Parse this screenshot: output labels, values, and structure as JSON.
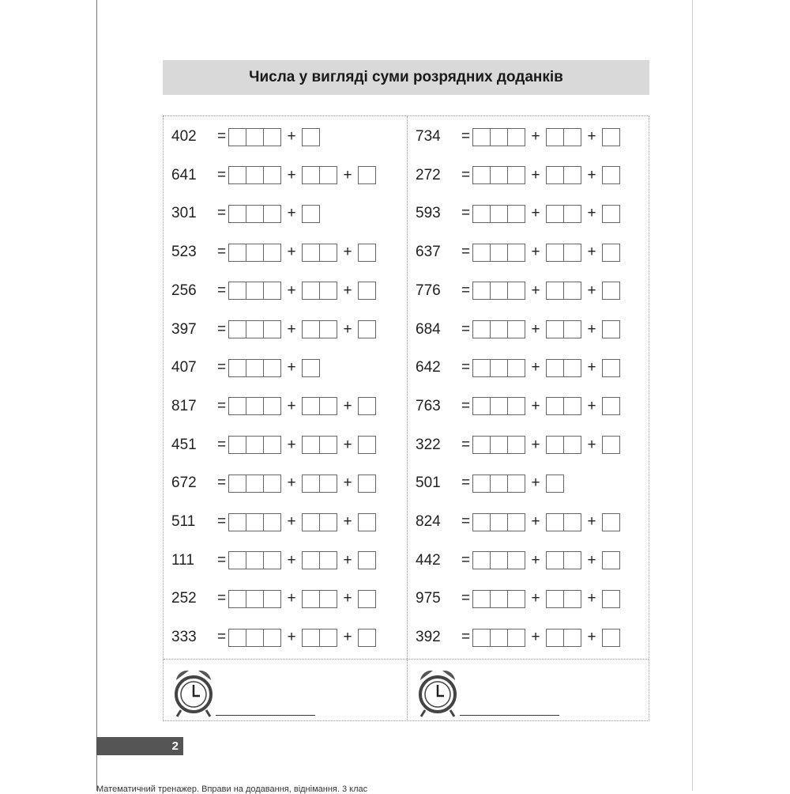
{
  "title": "Числа у вигляді суми розрядних доданків",
  "left_column": [
    {
      "number": "402",
      "terms": [
        3,
        1
      ]
    },
    {
      "number": "641",
      "terms": [
        3,
        2,
        1
      ]
    },
    {
      "number": "301",
      "terms": [
        3,
        1
      ]
    },
    {
      "number": "523",
      "terms": [
        3,
        2,
        1
      ]
    },
    {
      "number": "256",
      "terms": [
        3,
        2,
        1
      ]
    },
    {
      "number": "397",
      "terms": [
        3,
        2,
        1
      ]
    },
    {
      "number": "407",
      "terms": [
        3,
        1
      ]
    },
    {
      "number": "817",
      "terms": [
        3,
        2,
        1
      ]
    },
    {
      "number": "451",
      "terms": [
        3,
        2,
        1
      ]
    },
    {
      "number": "672",
      "terms": [
        3,
        2,
        1
      ]
    },
    {
      "number": "511",
      "terms": [
        3,
        2,
        1
      ]
    },
    {
      "number": "111",
      "terms": [
        3,
        2,
        1
      ]
    },
    {
      "number": "252",
      "terms": [
        3,
        2,
        1
      ]
    },
    {
      "number": "333",
      "terms": [
        3,
        2,
        1
      ]
    }
  ],
  "right_column": [
    {
      "number": "734",
      "terms": [
        3,
        2,
        1
      ]
    },
    {
      "number": "272",
      "terms": [
        3,
        2,
        1
      ]
    },
    {
      "number": "593",
      "terms": [
        3,
        2,
        1
      ]
    },
    {
      "number": "637",
      "terms": [
        3,
        2,
        1
      ]
    },
    {
      "number": "776",
      "terms": [
        3,
        2,
        1
      ]
    },
    {
      "number": "684",
      "terms": [
        3,
        2,
        1
      ]
    },
    {
      "number": "642",
      "terms": [
        3,
        2,
        1
      ]
    },
    {
      "number": "763",
      "terms": [
        3,
        2,
        1
      ]
    },
    {
      "number": "322",
      "terms": [
        3,
        2,
        1
      ]
    },
    {
      "number": "501",
      "terms": [
        3,
        1
      ]
    },
    {
      "number": "824",
      "terms": [
        3,
        2,
        1
      ]
    },
    {
      "number": "442",
      "terms": [
        3,
        2,
        1
      ]
    },
    {
      "number": "975",
      "terms": [
        3,
        2,
        1
      ]
    },
    {
      "number": "392",
      "terms": [
        3,
        2,
        1
      ]
    }
  ],
  "symbols": {
    "equals": "=",
    "plus": "+"
  },
  "timer_icon": "alarm-clock-icon",
  "page_number": "2",
  "footer_text": "Математичний тренажер. Вправи на додавання, віднімання. 3 клас",
  "colors": {
    "title_bar": "#d9d9d9",
    "page_bar": "#555555"
  }
}
